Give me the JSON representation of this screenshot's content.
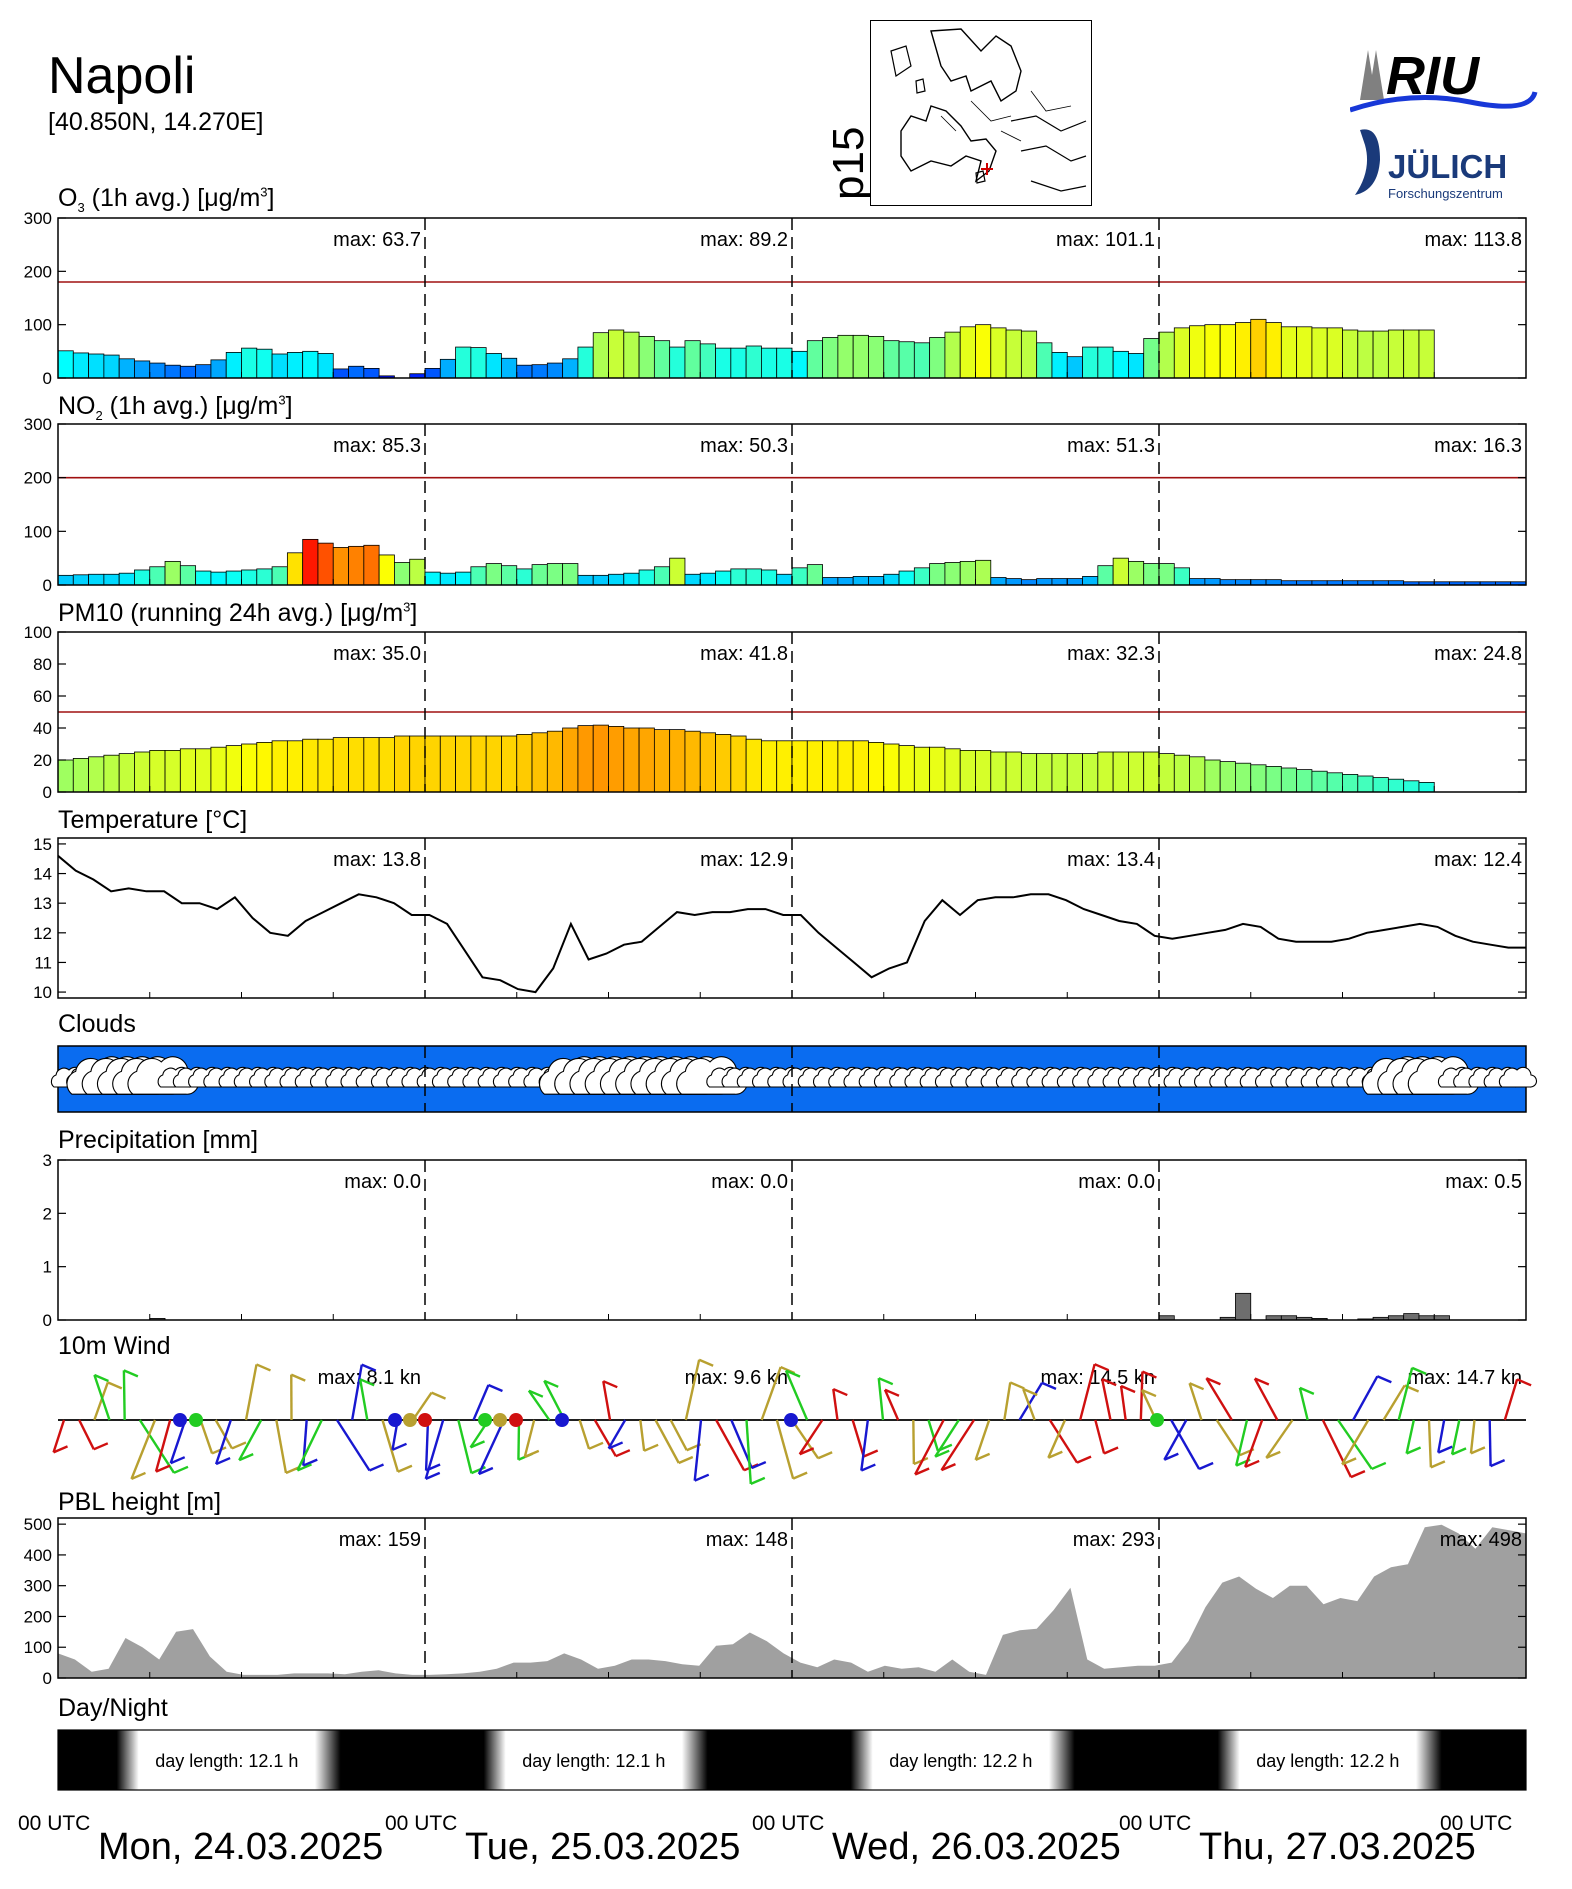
{
  "station": {
    "name": "Napoli",
    "coords": "[40.850N, 14.270E]"
  },
  "map_label": "p15",
  "logos": {
    "riu": "RIU",
    "julich": "JÜLICH",
    "julich_sub": "Forschungszentrum"
  },
  "panels": {
    "o3": {
      "title_pre": "O",
      "title_sub": "3",
      "title_post": " (1h avg.) [",
      "title_mu": "μg/m",
      "title_sup": "3",
      "title_end": "]"
    },
    "no2": {
      "title_pre": "NO",
      "title_sub": "2",
      "title_post": " (1h avg.) [",
      "title_mu": "μg/m",
      "title_sup": "3",
      "title_end": "]"
    },
    "pm10": {
      "title_pre": "PM10 (running 24h avg.) [",
      "title_mu": "μg/m",
      "title_sup": "3",
      "title_end": "]"
    },
    "temp": {
      "title": "Temperature [°C]"
    },
    "clouds": {
      "title": "Clouds"
    },
    "precip": {
      "title": "Precipitation [mm]"
    },
    "wind": {
      "title": "10m Wind"
    },
    "pbl": {
      "title": "PBL height [m]"
    },
    "daynight": {
      "title": "Day/Night"
    }
  },
  "footer": {
    "utc_label": "00 UTC",
    "dates": [
      "Mon, 24.03.2025",
      "Tue, 25.03.2025",
      "Wed, 26.03.2025",
      "Thu, 27.03.2025"
    ]
  },
  "colors": {
    "limit_line": "#a01010",
    "cloud_bg": "#0a6cf0",
    "bar_edge": "#000000",
    "fill_gray": "#a0a0a0"
  },
  "chart_data": [
    {
      "type": "bar",
      "id": "o3",
      "ylim": [
        0,
        300
      ],
      "yticks": [
        0,
        100,
        200,
        300
      ],
      "threshold": 180,
      "max_labels": [
        "max:  63.7",
        "max:  89.2",
        "max: 101.1",
        "max: 113.8"
      ],
      "values": [
        51,
        47,
        45,
        43,
        36,
        32,
        28,
        24,
        22,
        25,
        34,
        48,
        56,
        54,
        45,
        48,
        50,
        46,
        17,
        22,
        18,
        4,
        0,
        8,
        18,
        35,
        58,
        57,
        46,
        37,
        24,
        25,
        28,
        36,
        58,
        85,
        90,
        86,
        78,
        70,
        58,
        70,
        64,
        56,
        56,
        60,
        56,
        56,
        50,
        70,
        76,
        80,
        80,
        78,
        70,
        68,
        66,
        76,
        86,
        96,
        100,
        94,
        90,
        88,
        66,
        48,
        40,
        58,
        58,
        50,
        46,
        74,
        86,
        94,
        98,
        100,
        100,
        104,
        110,
        104,
        96,
        96,
        94,
        94,
        90,
        88,
        88,
        90,
        90,
        90
      ]
    },
    {
      "type": "bar",
      "id": "no2",
      "ylim": [
        0,
        300
      ],
      "yticks": [
        0,
        100,
        200,
        300
      ],
      "threshold": 200,
      "max_labels": [
        "max:  85.3",
        "max:  50.3",
        "max:  51.3",
        "max:  16.3"
      ],
      "values": [
        18,
        19,
        20,
        20,
        22,
        28,
        34,
        44,
        36,
        26,
        24,
        26,
        28,
        30,
        34,
        60,
        85,
        78,
        70,
        72,
        74,
        56,
        42,
        48,
        24,
        22,
        24,
        34,
        40,
        36,
        30,
        38,
        40,
        40,
        18,
        18,
        20,
        22,
        28,
        34,
        50,
        20,
        22,
        26,
        30,
        30,
        28,
        20,
        32,
        38,
        14,
        14,
        16,
        16,
        20,
        26,
        32,
        40,
        42,
        44,
        46,
        14,
        12,
        10,
        12,
        12,
        12,
        16,
        36,
        50,
        44,
        40,
        40,
        32,
        12,
        12,
        10,
        10,
        10,
        10,
        8,
        8,
        8,
        8,
        8,
        8,
        8,
        8,
        6,
        6,
        6,
        6,
        6,
        6,
        6,
        6
      ]
    },
    {
      "type": "bar",
      "id": "pm10",
      "ylim": [
        0,
        100
      ],
      "yticks": [
        0,
        20,
        40,
        60,
        80,
        100
      ],
      "threshold": 50,
      "max_labels": [
        "max:  35.0",
        "max:  41.8",
        "max:  32.3",
        "max:  24.8"
      ],
      "values": [
        20,
        21,
        22,
        23,
        24,
        25,
        26,
        26,
        27,
        27,
        28,
        29,
        30,
        31,
        32,
        32,
        33,
        33,
        34,
        34,
        34,
        34,
        35,
        35,
        35,
        35,
        35,
        35,
        35,
        35,
        36,
        37,
        38,
        40,
        41.5,
        41.8,
        41,
        40,
        40,
        39,
        39,
        38,
        37,
        36,
        35,
        33,
        32,
        32,
        32,
        32,
        32,
        32,
        32,
        31,
        30,
        29,
        28,
        28,
        27,
        26,
        26,
        25,
        25,
        24,
        24,
        24,
        24,
        24,
        25,
        25,
        25,
        25,
        24,
        23,
        22,
        20,
        19,
        18,
        17,
        16,
        15,
        14,
        13,
        12,
        11,
        10,
        9,
        8,
        7,
        6
      ]
    },
    {
      "type": "line",
      "id": "temp",
      "ylim": [
        9.8,
        15.2
      ],
      "yticks": [
        10,
        11,
        12,
        13,
        14,
        15
      ],
      "max_labels": [
        "max:  13.8",
        "max:  12.9",
        "max:  13.4",
        "max:  12.4"
      ],
      "values": [
        14.6,
        14.1,
        13.8,
        13.4,
        13.5,
        13.4,
        13.4,
        13.0,
        13.0,
        12.8,
        13.2,
        12.5,
        12.0,
        11.9,
        12.4,
        12.7,
        13.0,
        13.3,
        13.2,
        13.0,
        12.6,
        12.6,
        12.3,
        11.4,
        10.5,
        10.4,
        10.1,
        10.0,
        10.8,
        12.3,
        11.1,
        11.3,
        11.6,
        11.7,
        12.2,
        12.7,
        12.6,
        12.7,
        12.7,
        12.8,
        12.8,
        12.6,
        12.6,
        12.0,
        11.5,
        11.0,
        10.5,
        10.8,
        11.0,
        12.4,
        13.1,
        12.6,
        13.1,
        13.2,
        13.2,
        13.3,
        13.3,
        13.1,
        12.8,
        12.6,
        12.4,
        12.3,
        11.9,
        11.8,
        11.9,
        12.0,
        12.1,
        12.3,
        12.2,
        11.8,
        11.7,
        11.7,
        11.7,
        11.8,
        12.0,
        12.1,
        12.2,
        12.3,
        12.2,
        11.9,
        11.7,
        11.6,
        11.5,
        11.5
      ]
    },
    {
      "type": "area",
      "id": "clouds",
      "note_values": "cloud symbol size per hour (0 none, 1 small, 2 large)",
      "values": [
        1,
        1,
        2,
        2,
        2,
        2,
        2,
        1,
        1,
        1,
        1,
        1,
        1,
        1,
        1,
        1,
        1,
        1,
        1,
        1,
        1,
        1,
        1,
        1,
        1,
        1,
        1,
        1,
        1,
        1,
        1,
        1,
        1,
        2,
        2,
        2,
        2,
        2,
        2,
        2,
        2,
        2,
        2,
        1,
        1,
        1,
        1,
        1,
        1,
        1,
        1,
        1,
        1,
        1,
        1,
        1,
        1,
        1,
        1,
        1,
        1,
        1,
        1,
        1,
        1,
        1,
        1,
        1,
        1,
        1,
        1,
        1,
        1,
        1,
        1,
        1,
        1,
        1,
        1,
        1,
        1,
        1,
        1,
        1,
        1,
        1,
        1,
        2,
        2,
        2,
        2,
        1,
        1,
        1,
        1,
        1
      ]
    },
    {
      "type": "bar",
      "id": "precip",
      "ylim": [
        0,
        3
      ],
      "yticks": [
        0,
        1,
        2,
        3
      ],
      "max_labels": [
        "max:   0.0",
        "max:   0.0",
        "max:   0.0",
        "max:   0.5"
      ],
      "values": [
        0,
        0,
        0,
        0,
        0,
        0,
        0.03,
        0,
        0,
        0,
        0,
        0,
        0,
        0,
        0,
        0,
        0,
        0,
        0,
        0,
        0,
        0,
        0,
        0,
        0,
        0,
        0,
        0,
        0,
        0,
        0,
        0,
        0,
        0,
        0,
        0,
        0,
        0,
        0,
        0,
        0,
        0,
        0,
        0,
        0,
        0,
        0,
        0,
        0,
        0,
        0,
        0,
        0,
        0,
        0,
        0,
        0,
        0,
        0,
        0,
        0,
        0,
        0,
        0,
        0,
        0,
        0,
        0,
        0,
        0,
        0,
        0,
        0.08,
        0,
        0,
        0,
        0.05,
        0.5,
        0,
        0.08,
        0.08,
        0.05,
        0.03,
        0,
        0,
        0.02,
        0.05,
        0.08,
        0.12,
        0.08,
        0.08,
        0,
        0,
        0,
        0,
        0
      ]
    },
    {
      "type": "scatter",
      "id": "wind",
      "max_labels": [
        "max:   8.1 kn",
        "max:   9.6 kn",
        "max:  14.5 kn",
        "max:  14.7 kn"
      ],
      "legend": "barbs colored by speed"
    },
    {
      "type": "area",
      "id": "pbl",
      "ylim": [
        0,
        520
      ],
      "yticks": [
        0,
        100,
        200,
        300,
        400,
        500
      ],
      "max_labels": [
        "max:   159",
        "max:   148",
        "max:   293",
        "max:   498"
      ],
      "values": [
        80,
        60,
        20,
        30,
        130,
        100,
        60,
        150,
        159,
        70,
        20,
        10,
        10,
        10,
        15,
        15,
        15,
        12,
        20,
        25,
        15,
        10,
        10,
        12,
        15,
        20,
        30,
        50,
        50,
        55,
        80,
        60,
        30,
        40,
        60,
        60,
        55,
        45,
        40,
        105,
        110,
        148,
        120,
        80,
        50,
        35,
        60,
        50,
        20,
        40,
        30,
        35,
        20,
        60,
        20,
        10,
        140,
        155,
        160,
        220,
        293,
        60,
        30,
        35,
        40,
        40,
        50,
        120,
        230,
        310,
        330,
        290,
        260,
        300,
        300,
        240,
        260,
        250,
        330,
        360,
        370,
        490,
        498,
        470,
        420,
        490,
        480,
        470
      ]
    },
    {
      "type": "table",
      "id": "daynight",
      "labels": [
        "day length:  12.1 h",
        "day length:  12.1 h",
        "day length:  12.2 h",
        "day length:  12.2 h"
      ]
    }
  ]
}
